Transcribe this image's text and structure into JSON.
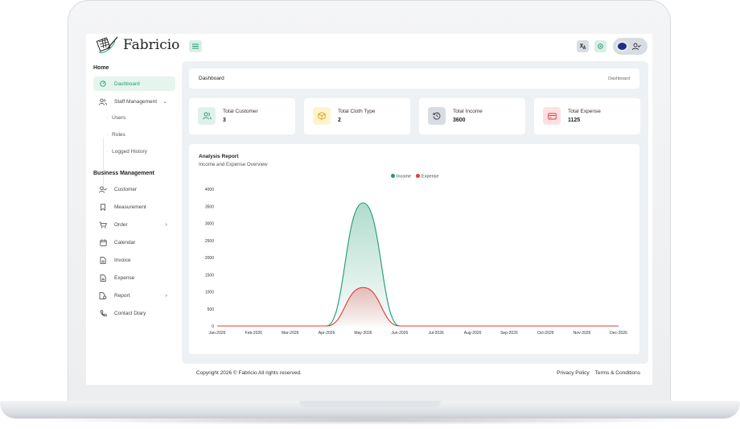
{
  "app": {
    "name": "Fabricio"
  },
  "sidebar": {
    "sections": [
      "Home",
      "Business Management"
    ],
    "items": [
      {
        "label": "Dashboard",
        "icon": "dashboard-icon",
        "active": true
      },
      {
        "label": "Staff Management",
        "icon": "users-icon",
        "chevron": "chevron-down-icon"
      },
      {
        "label": "Customer",
        "icon": "user-check-icon"
      },
      {
        "label": "Measurement",
        "icon": "bookmark-icon"
      },
      {
        "label": "Order",
        "icon": "cart-icon",
        "chevron": "chevron-right-icon"
      },
      {
        "label": "Calendar",
        "icon": "calendar-icon"
      },
      {
        "label": "Invoice",
        "icon": "file-icon"
      },
      {
        "label": "Expense",
        "icon": "file-icon"
      },
      {
        "label": "Report",
        "icon": "report-icon",
        "chevron": "chevron-right-icon"
      },
      {
        "label": "Contact Diary",
        "icon": "phone-icon"
      }
    ],
    "sub_items": [
      "Users",
      "Roles",
      "Logged History"
    ]
  },
  "breadcrumb": {
    "title": "Dashboard",
    "current": "Dashboard"
  },
  "stats": [
    {
      "label": "Total Customer",
      "value": "3",
      "icon": "users-icon",
      "color": "#dff1ea"
    },
    {
      "label": "Total Cloth Type",
      "value": "2",
      "icon": "box-icon",
      "color": "#fdf3cf"
    },
    {
      "label": "Total Income",
      "value": "3600",
      "icon": "history-icon",
      "color": "#d9dde3"
    },
    {
      "label": "Total Expense",
      "value": "1125",
      "icon": "credit-card-icon",
      "color": "#fde0e2"
    }
  ],
  "report": {
    "title": "Analysis Report",
    "subtitle": "Income and Expense Overview"
  },
  "chart_data": {
    "type": "area",
    "categories": [
      "Jan-2026",
      "Feb-2026",
      "Mar-2026",
      "Apr-2026",
      "May-2026",
      "Jun-2026",
      "Jul-2026",
      "Aug-2026",
      "Sep-2026",
      "Oct-2026",
      "Nov-2026",
      "Dec-2026"
    ],
    "yticks": [
      "4000",
      "3500",
      "3000",
      "2500",
      "2000",
      "1500",
      "1000",
      "500",
      "0"
    ],
    "ylim": [
      0,
      4000
    ],
    "series": [
      {
        "name": "Income",
        "color": "#1f9a73",
        "values": [
          0,
          0,
          0,
          0,
          3600,
          0,
          0,
          0,
          0,
          0,
          0,
          0
        ]
      },
      {
        "name": "Expense",
        "color": "#e53935",
        "values": [
          0,
          0,
          0,
          0,
          1125,
          0,
          0,
          0,
          0,
          0,
          0,
          0
        ]
      }
    ],
    "legend": "top-center"
  },
  "footer": {
    "copyright": "Copyright 2026 © Fabricio All rights reserved.",
    "links": [
      "Privacy Policy",
      "Terms & Conditions"
    ]
  },
  "colors": {
    "accent": "#1f9a73",
    "panel": "#eef1f4"
  }
}
